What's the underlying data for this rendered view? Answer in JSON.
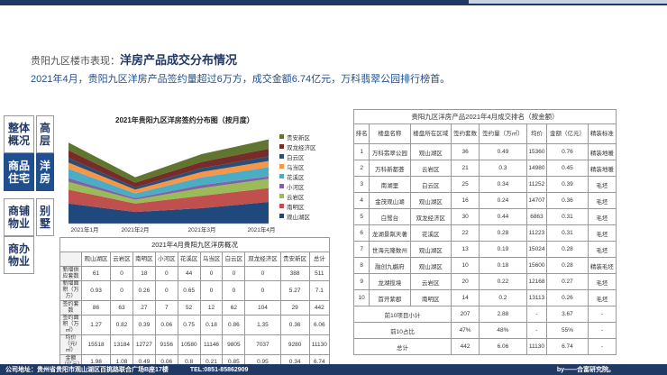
{
  "header": {
    "title_prefix": "贵阳九区楼市表现：",
    "title_main": "洋房产品成交分布情况",
    "subtitle": "2021年4月，贵阳九区洋房产品签约量超过6万方，成交金额6.74亿元，万科翡翠公园排行榜首。"
  },
  "sidenav": {
    "integral_overview": "整体概况",
    "high_rise": "高层",
    "commercial_housing": "商品住宅",
    "yangfang": "洋房",
    "commercial_shops": "商铺物业",
    "villa": "别墅",
    "commercial_office": "商办物业"
  },
  "chart_data": {
    "type": "area",
    "title": "2021年贵阳九区洋房签约分布图（按月度）",
    "categories": [
      "2021年1月",
      "2021年2月",
      "2021年3月",
      "2021年4月"
    ],
    "series": [
      {
        "name": "观山湖区",
        "color": "#1f497d",
        "values": [
          0.26,
          0.15,
          0.2,
          0.28
        ]
      },
      {
        "name": "南明区",
        "color": "#c0504d",
        "values": [
          0.18,
          0.11,
          0.16,
          0.18
        ]
      },
      {
        "name": "云岩区",
        "color": "#9bbb59",
        "values": [
          0.1,
          0.05,
          0.1,
          0.12
        ]
      },
      {
        "name": "小河区",
        "color": "#8064a2",
        "values": [
          0.05,
          0.02,
          0.04,
          0.03
        ]
      },
      {
        "name": "花溪区",
        "color": "#4bacc6",
        "values": [
          0.12,
          0.06,
          0.1,
          0.12
        ]
      },
      {
        "name": "乌当区",
        "color": "#f79646",
        "values": [
          0.08,
          0.05,
          0.07,
          0.08
        ]
      },
      {
        "name": "白云区",
        "color": "#2c4d75",
        "values": [
          0.06,
          0.03,
          0.05,
          0.06
        ]
      },
      {
        "name": "双龙经济区",
        "color": "#772c2a",
        "values": [
          0.1,
          0.06,
          0.08,
          0.1
        ]
      },
      {
        "name": "贵安新区",
        "color": "#5f7530",
        "values": [
          0.1,
          0.07,
          0.1,
          0.12
        ]
      }
    ]
  },
  "table1": {
    "title": "2021年4月贵阳九区洋房概况",
    "header": [
      "",
      "观山湖区",
      "云岩区",
      "南明区",
      "小河区",
      "花溪区",
      "乌当区",
      "白云区",
      "双龙经济区",
      "贵安新区",
      "总计"
    ],
    "rows": [
      [
        "新增供应套数",
        "61",
        "0",
        "18",
        "0",
        "44",
        "0",
        "0",
        "0",
        "388",
        "511"
      ],
      [
        "新增面积（万方）",
        "0.93",
        "0",
        "0.26",
        "0",
        "0.65",
        "0",
        "0",
        "0",
        "5.27",
        "7.1"
      ],
      [
        "签约套数",
        "86",
        "63",
        "27",
        "7",
        "52",
        "12",
        "62",
        "104",
        "29",
        "442"
      ],
      [
        "签约面积（万㎡）",
        "1.27",
        "0.82",
        "0.39",
        "0.06",
        "0.75",
        "0.18",
        "0.86",
        "1.35",
        "0.36",
        "6.06"
      ],
      [
        "均价（元/㎡）",
        "15518",
        "13184",
        "12727",
        "9156",
        "10580",
        "11146",
        "9805",
        "7037",
        "9280",
        "11130"
      ],
      [
        "金额（亿元）",
        "1.98",
        "1.08",
        "0.49",
        "0.06",
        "0.8",
        "0.21",
        "0.85",
        "0.95",
        "0.34",
        "6.74"
      ]
    ]
  },
  "table2": {
    "title": "贵阳九区洋房产品2021年4月成交排名（按金额）",
    "header": [
      "排名",
      "楼盘名称",
      "楼盘所在区域",
      "签约套数",
      "签约量（万㎡）",
      "均价",
      "金额（亿元）",
      "精装标准"
    ],
    "rows": [
      [
        "1",
        "万科翡翠公园",
        "观山湖区",
        "36",
        "0.49",
        "15360",
        "0.76",
        "精装地暖"
      ],
      [
        "2",
        "万科新都荟",
        "云岩区",
        "21",
        "0.3",
        "14980",
        "0.45",
        "精装地暖"
      ],
      [
        "3",
        "南湖里",
        "白云区",
        "25",
        "0.34",
        "11252",
        "0.39",
        "毛坯"
      ],
      [
        "4",
        "金茂观山湖",
        "观山湖区",
        "16",
        "0.24",
        "14707",
        "0.36",
        "毛坯"
      ],
      [
        "5",
        "白鹭台",
        "双龙经济区",
        "30",
        "0.44",
        "6863",
        "0.31",
        "毛坯"
      ],
      [
        "6",
        "龙湖景粼天著",
        "花溪区",
        "22",
        "0.28",
        "11223",
        "0.31",
        "毛坯"
      ],
      [
        "7",
        "世海元隆数州",
        "观山湖区",
        "13",
        "0.19",
        "15024",
        "0.28",
        "毛坯"
      ],
      [
        "8",
        "融创九樾府",
        "观山湖区",
        "10",
        "0.18",
        "15600",
        "0.28",
        "精装毛坯"
      ],
      [
        "9",
        "龙湖揽境",
        "云岩区",
        "20",
        "0.22",
        "12168",
        "0.27",
        "毛坯"
      ],
      [
        "10",
        "首开紫郡",
        "南明区",
        "14",
        "0.2",
        "13113",
        "0.26",
        "毛坯"
      ]
    ],
    "subtotal": {
      "label": "前10项目小计",
      "units": "207",
      "area": "2.88",
      "price": "-",
      "amount": "3.67",
      "spec": "-"
    },
    "share": {
      "label": "前10占比",
      "units": "47%",
      "area": "48%",
      "price": "-",
      "amount": "55%",
      "spec": "-"
    },
    "total": {
      "label": "总计",
      "units": "442",
      "area": "6.06",
      "price": "11130",
      "amount": "6.74",
      "spec": "-"
    }
  },
  "footer": {
    "address": "公司地址：贵州省贵阳市观山湖区百挑路联合广场B座17楼",
    "phone": "TEL:0851-85862909",
    "by": "by——合富研究院。"
  }
}
